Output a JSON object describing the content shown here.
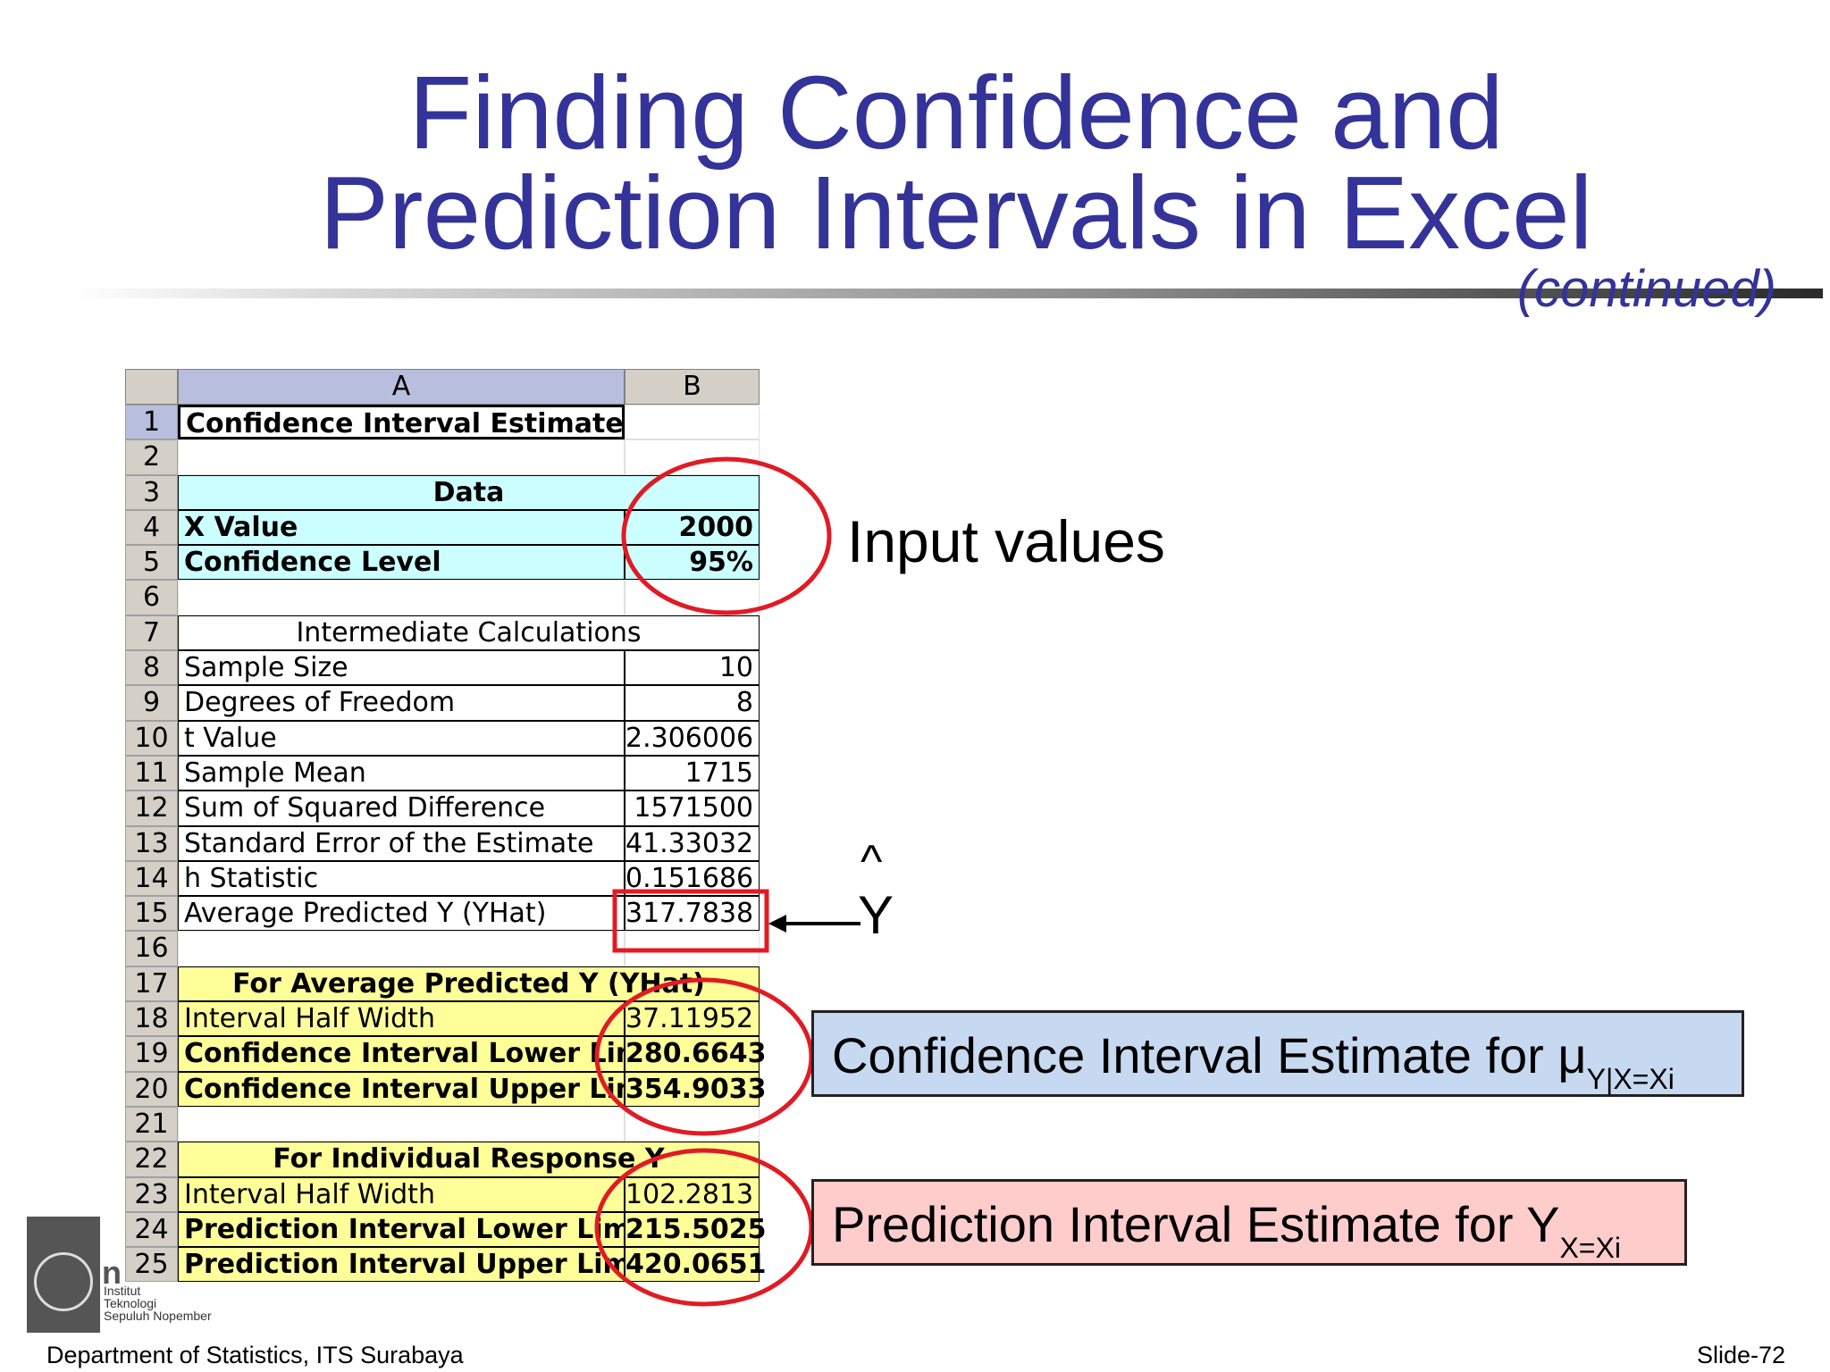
{
  "title": {
    "line1": "Finding Confidence and",
    "line2": "Prediction Intervals in Excel",
    "continued": "(continued)"
  },
  "sheet": {
    "col_headers": [
      "A",
      "B"
    ],
    "rows": [
      {
        "n": "1",
        "a": "Confidence Interval Estimate",
        "b": ""
      },
      {
        "n": "2",
        "a": "",
        "b": ""
      },
      {
        "n": "3",
        "a": "Data",
        "b": ""
      },
      {
        "n": "4",
        "a": "X Value",
        "b": "2000"
      },
      {
        "n": "5",
        "a": "Confidence Level",
        "b": "95%"
      },
      {
        "n": "6",
        "a": "",
        "b": ""
      },
      {
        "n": "7",
        "a": "Intermediate Calculations",
        "b": ""
      },
      {
        "n": "8",
        "a": "Sample Size",
        "b": "10"
      },
      {
        "n": "9",
        "a": "Degrees of Freedom",
        "b": "8"
      },
      {
        "n": "10",
        "a": "t Value",
        "b": "2.306006"
      },
      {
        "n": "11",
        "a": "Sample Mean",
        "b": "1715"
      },
      {
        "n": "12",
        "a": "Sum of Squared Difference",
        "b": "1571500"
      },
      {
        "n": "13",
        "a": "Standard Error of the Estimate",
        "b": "41.33032"
      },
      {
        "n": "14",
        "a": "h Statistic",
        "b": "0.151686"
      },
      {
        "n": "15",
        "a": "Average Predicted Y (YHat)",
        "b": "317.7838"
      },
      {
        "n": "16",
        "a": "",
        "b": ""
      },
      {
        "n": "17",
        "a": "For Average Predicted Y (YHat)",
        "b": ""
      },
      {
        "n": "18",
        "a": "Interval Half Width",
        "b": "37.11952"
      },
      {
        "n": "19",
        "a": "Confidence Interval Lower Limit",
        "b": "280.6643"
      },
      {
        "n": "20",
        "a": "Confidence Interval Upper Limit",
        "b": "354.9033"
      },
      {
        "n": "21",
        "a": "",
        "b": ""
      },
      {
        "n": "22",
        "a": "For Individual Response Y",
        "b": ""
      },
      {
        "n": "23",
        "a": "Interval Half Width",
        "b": "102.2813"
      },
      {
        "n": "24",
        "a": "Prediction Interval Lower Limit",
        "b": "215.5025"
      },
      {
        "n": "25",
        "a": "Prediction Interval Upper Limit",
        "b": "420.0651"
      }
    ]
  },
  "annotations": {
    "input_values": "Input values",
    "yhat_caret": "^",
    "yhat_y": "Y",
    "ci_text": "Confidence Interval Estimate for μ",
    "ci_sub": "Y|X=Xi",
    "pi_text": "Prediction Interval Estimate for Y",
    "pi_sub": "X=Xi",
    "circle_color": "#e01b24",
    "ci_box_color": "#c6d9f1",
    "pi_box_color": "#ffcccc"
  },
  "logo": {
    "line1": "Institut",
    "line2": "Teknologi",
    "line3": "Sepuluh Nopember"
  },
  "footer": {
    "left": "Department of  Statistics, ITS Surabaya",
    "right": "Slide-72"
  }
}
